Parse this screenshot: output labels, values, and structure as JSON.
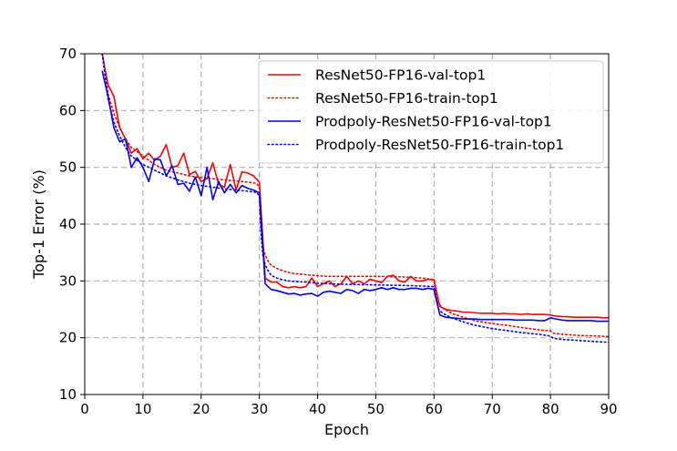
{
  "chart_data": {
    "type": "line",
    "title": "",
    "xlabel": "Epoch",
    "ylabel": "Top-1 Error (%)",
    "xlim": [
      0,
      90
    ],
    "ylim": [
      10,
      70
    ],
    "xticks": [
      0,
      10,
      20,
      30,
      40,
      50,
      60,
      70,
      80,
      90
    ],
    "yticks": [
      10,
      20,
      30,
      40,
      50,
      60,
      70
    ],
    "grid": true,
    "legend_position": "upper-right",
    "series": [
      {
        "name": "ResNet50-FP16-val-top1",
        "color": "#ff0000",
        "style": "solid",
        "x": [
          3,
          4,
          5,
          6,
          7,
          8,
          9,
          10,
          11,
          12,
          13,
          14,
          15,
          16,
          17,
          18,
          19,
          20,
          21,
          22,
          23,
          24,
          25,
          26,
          27,
          28,
          29,
          30,
          31,
          32,
          33,
          34,
          35,
          36,
          37,
          38,
          39,
          40,
          41,
          42,
          43,
          44,
          45,
          46,
          47,
          48,
          49,
          50,
          51,
          52,
          53,
          54,
          55,
          56,
          57,
          58,
          59,
          60,
          61,
          62,
          63,
          64,
          65,
          66,
          67,
          68,
          69,
          70,
          71,
          72,
          73,
          74,
          75,
          76,
          77,
          78,
          79,
          80,
          81,
          82,
          83,
          84,
          85,
          86,
          87,
          88,
          89,
          90
        ],
        "values": [
          70,
          64.5,
          62.5,
          57,
          55,
          52.5,
          53.3,
          51.5,
          52.5,
          51.2,
          52,
          54,
          50,
          50.3,
          52.5,
          48.7,
          49.3,
          47.5,
          48,
          50.8,
          47,
          46.5,
          50.5,
          46,
          49.2,
          49,
          48.5,
          47.4,
          30.5,
          29.8,
          29.8,
          29,
          28.8,
          29,
          28.8,
          29,
          30.5,
          29,
          29.5,
          30,
          29,
          29.5,
          30.8,
          29.5,
          30,
          29.5,
          30.3,
          30,
          29.7,
          30.8,
          31,
          30,
          29.8,
          30.8,
          30,
          30,
          30.3,
          30.2,
          25.5,
          25,
          24.8,
          24.7,
          24.5,
          24.5,
          24.4,
          24.3,
          24.3,
          24.3,
          24.2,
          24.3,
          24.2,
          24.2,
          24.1,
          24.2,
          24.1,
          24.1,
          24.1,
          24,
          23.8,
          23.7,
          23.7,
          23.6,
          23.6,
          23.6,
          23.6,
          23.6,
          23.5,
          23.5
        ]
      },
      {
        "name": "ResNet50-FP16-train-top1",
        "color": "#ff0000",
        "style": "dotted",
        "x": [
          3,
          4,
          5,
          6,
          7,
          8,
          10,
          12,
          14,
          16,
          18,
          20,
          22,
          24,
          26,
          28,
          29.5,
          30,
          30.3,
          30.6,
          31,
          31.5,
          32,
          33,
          34,
          35,
          36,
          38,
          40,
          42,
          45,
          50,
          55,
          58,
          60,
          60.3,
          60.8,
          61.5,
          63,
          65,
          67,
          70,
          73,
          75,
          78,
          80,
          80.5,
          82,
          85,
          88,
          90
        ],
        "values": [
          70,
          63,
          59.5,
          57,
          55,
          53.5,
          52,
          50.5,
          49.5,
          49,
          48.5,
          48.2,
          48,
          47.8,
          47.6,
          47.4,
          47.2,
          46.5,
          40,
          36,
          34.5,
          33.5,
          32.8,
          32.2,
          31.8,
          31.5,
          31.3,
          31.1,
          30.9,
          30.8,
          30.8,
          30.8,
          30.7,
          30.5,
          30.2,
          28,
          26,
          25.2,
          24.3,
          23.6,
          23,
          22.5,
          22.1,
          21.8,
          21.4,
          21.2,
          20.8,
          20.6,
          20.4,
          20.3,
          20.2
        ]
      },
      {
        "name": "Prodpoly-ResNet50-FP16-val-top1",
        "color": "#0000ff",
        "style": "solid",
        "x": [
          3,
          4,
          5,
          6,
          7,
          8,
          9,
          10,
          11,
          12,
          13,
          14,
          15,
          16,
          17,
          18,
          19,
          20,
          21,
          22,
          23,
          24,
          25,
          26,
          27,
          28,
          29,
          30,
          31,
          32,
          33,
          34,
          35,
          36,
          37,
          38,
          39,
          40,
          41,
          42,
          43,
          44,
          45,
          46,
          47,
          48,
          49,
          50,
          51,
          52,
          53,
          54,
          55,
          56,
          57,
          58,
          59,
          60,
          61,
          62,
          63,
          64,
          65,
          66,
          67,
          68,
          69,
          70,
          71,
          72,
          73,
          74,
          75,
          76,
          77,
          78,
          79,
          80,
          81,
          82,
          83,
          84,
          85,
          86,
          87,
          88,
          89,
          90
        ],
        "values": [
          67,
          62.5,
          57,
          54.5,
          55,
          50,
          51.7,
          50,
          47.5,
          51.5,
          51.3,
          48.5,
          50.3,
          47,
          47.2,
          45.8,
          48.3,
          45,
          50,
          44.3,
          47.5,
          45.5,
          47,
          45.5,
          46.8,
          46.3,
          46,
          45.5,
          29.5,
          28.5,
          28.3,
          28,
          27.7,
          27.8,
          27.5,
          27.7,
          27.8,
          27.3,
          28,
          28.2,
          28,
          27.8,
          28.5,
          28.3,
          27.8,
          28.5,
          28.3,
          28.5,
          28.8,
          28.5,
          28.8,
          28.5,
          28.5,
          28.7,
          28.7,
          28.5,
          28.7,
          28.5,
          24,
          23.6,
          23.5,
          23.4,
          23.3,
          23.3,
          23.3,
          23.2,
          23.2,
          23.2,
          23.2,
          23.2,
          23.2,
          23.1,
          23.1,
          23.1,
          23.1,
          23,
          23,
          23.5,
          23.3,
          23.1,
          23,
          23,
          23,
          23,
          23,
          22.9,
          22.9,
          22.9
        ]
      },
      {
        "name": "Prodpoly-ResNet50-FP16-train-top1",
        "color": "#0000ff",
        "style": "dotted",
        "x": [
          3,
          4,
          5,
          6,
          7,
          8,
          10,
          12,
          14,
          16,
          18,
          20,
          22,
          24,
          26,
          28,
          29.5,
          30,
          30.3,
          30.6,
          31,
          31.5,
          32,
          33,
          34,
          35,
          36,
          38,
          40,
          42,
          45,
          50,
          55,
          58,
          60,
          60.3,
          60.8,
          61.5,
          63,
          65,
          67,
          70,
          73,
          75,
          78,
          80,
          80.5,
          82,
          85,
          88,
          90
        ],
        "values": [
          70,
          62,
          58,
          55.5,
          53.5,
          52,
          50.5,
          49.5,
          48.5,
          47.8,
          47.2,
          46.8,
          46.5,
          46.2,
          46,
          45.8,
          45.6,
          45,
          38,
          34.5,
          32.8,
          31.8,
          31,
          30.5,
          30.2,
          30,
          29.9,
          29.8,
          29.6,
          29.5,
          29.4,
          29.3,
          29.2,
          29.1,
          29,
          27,
          25,
          24.3,
          23.5,
          22.8,
          22.2,
          21.6,
          21.2,
          20.9,
          20.6,
          20.3,
          19.9,
          19.7,
          19.5,
          19.3,
          19.2
        ]
      }
    ]
  }
}
